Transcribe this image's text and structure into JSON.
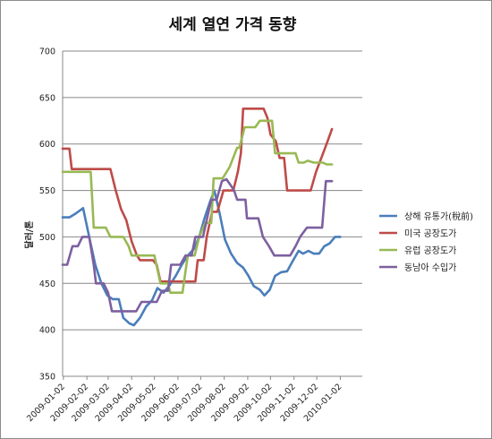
{
  "chart_data": {
    "type": "line",
    "title": "세계 열연 가격 동향",
    "ylabel": "달러/톤",
    "xlabel": "",
    "ylim": [
      350,
      700
    ],
    "yticks": [
      350,
      400,
      450,
      500,
      550,
      600,
      650,
      700
    ],
    "grid": "horizontal",
    "legend": "right",
    "xlim": [
      "2009-01-01",
      "2010-01-31"
    ],
    "xticks": [
      "2009-01-02",
      "2009-02-02",
      "2009-03-02",
      "2009-04-02",
      "2009-05-02",
      "2009-06-02",
      "2009-07-02",
      "2009-08-02",
      "2009-09-02",
      "2009-10-02",
      "2009-11-02",
      "2009-12-02",
      "2010-01-02"
    ],
    "series": [
      {
        "name": "상해 유통가(稅前)",
        "color": "#4a7ebb",
        "points": [
          [
            "2009-01-01",
            521
          ],
          [
            "2009-01-10",
            521
          ],
          [
            "2009-01-18",
            525
          ],
          [
            "2009-01-28",
            531
          ],
          [
            "2009-02-05",
            500
          ],
          [
            "2009-02-13",
            470
          ],
          [
            "2009-02-21",
            450
          ],
          [
            "2009-03-01",
            437
          ],
          [
            "2009-03-08",
            433
          ],
          [
            "2009-03-16",
            433
          ],
          [
            "2009-03-22",
            413
          ],
          [
            "2009-03-30",
            407
          ],
          [
            "2009-04-05",
            405
          ],
          [
            "2009-04-13",
            413
          ],
          [
            "2009-04-21",
            425
          ],
          [
            "2009-04-29",
            432
          ],
          [
            "2009-05-06",
            445
          ],
          [
            "2009-05-14",
            440
          ],
          [
            "2009-05-22",
            448
          ],
          [
            "2009-05-30",
            458
          ],
          [
            "2009-06-07",
            470
          ],
          [
            "2009-06-15",
            480
          ],
          [
            "2009-06-23",
            487
          ],
          [
            "2009-06-30",
            500
          ],
          [
            "2009-07-07",
            520
          ],
          [
            "2009-07-14",
            537
          ],
          [
            "2009-07-20",
            550
          ],
          [
            "2009-07-27",
            525
          ],
          [
            "2009-08-03",
            497
          ],
          [
            "2009-08-11",
            482
          ],
          [
            "2009-08-19",
            472
          ],
          [
            "2009-08-27",
            467
          ],
          [
            "2009-09-03",
            458
          ],
          [
            "2009-09-10",
            447
          ],
          [
            "2009-09-18",
            443
          ],
          [
            "2009-09-24",
            437
          ],
          [
            "2009-10-01",
            443
          ],
          [
            "2009-10-08",
            458
          ],
          [
            "2009-10-16",
            462
          ],
          [
            "2009-10-24",
            463
          ],
          [
            "2009-11-01",
            475
          ],
          [
            "2009-11-08",
            485
          ],
          [
            "2009-11-14",
            482
          ],
          [
            "2009-11-21",
            485
          ],
          [
            "2009-11-28",
            482
          ],
          [
            "2009-12-05",
            482
          ],
          [
            "2009-12-12",
            490
          ],
          [
            "2009-12-19",
            493
          ],
          [
            "2009-12-26",
            500
          ],
          [
            "2010-01-02",
            500
          ]
        ]
      },
      {
        "name": "미국 공장도가",
        "color": "#be4b48",
        "points": [
          [
            "2009-01-01",
            595
          ],
          [
            "2009-01-10",
            595
          ],
          [
            "2009-01-13",
            573
          ],
          [
            "2009-01-30",
            573
          ],
          [
            "2009-02-19",
            573
          ],
          [
            "2009-03-05",
            573
          ],
          [
            "2009-03-12",
            550
          ],
          [
            "2009-03-19",
            530
          ],
          [
            "2009-03-26",
            518
          ],
          [
            "2009-04-02",
            495
          ],
          [
            "2009-04-09",
            480
          ],
          [
            "2009-04-13",
            475
          ],
          [
            "2009-04-30",
            475
          ],
          [
            "2009-05-05",
            470
          ],
          [
            "2009-05-10",
            452
          ],
          [
            "2009-05-25",
            452
          ],
          [
            "2009-06-25",
            452
          ],
          [
            "2009-06-28",
            475
          ],
          [
            "2009-07-06",
            475
          ],
          [
            "2009-07-10",
            500
          ],
          [
            "2009-07-17",
            527
          ],
          [
            "2009-07-24",
            527
          ],
          [
            "2009-08-01",
            550
          ],
          [
            "2009-08-14",
            550
          ],
          [
            "2009-08-20",
            570
          ],
          [
            "2009-08-24",
            590
          ],
          [
            "2009-08-27",
            638
          ],
          [
            "2009-09-23",
            638
          ],
          [
            "2009-09-28",
            628
          ],
          [
            "2009-10-02",
            610
          ],
          [
            "2009-10-09",
            603
          ],
          [
            "2009-10-14",
            585
          ],
          [
            "2009-10-20",
            585
          ],
          [
            "2009-10-24",
            550
          ],
          [
            "2009-11-24",
            550
          ],
          [
            "2009-12-01",
            570
          ],
          [
            "2009-12-08",
            585
          ],
          [
            "2009-12-15",
            600
          ],
          [
            "2009-12-22",
            616
          ]
        ]
      },
      {
        "name": "유럽 공장도가",
        "color": "#98b954",
        "points": [
          [
            "2009-01-01",
            570
          ],
          [
            "2009-01-12",
            570
          ],
          [
            "2009-01-19",
            570
          ],
          [
            "2009-02-07",
            570
          ],
          [
            "2009-02-11",
            510
          ],
          [
            "2009-02-27",
            510
          ],
          [
            "2009-03-05",
            500
          ],
          [
            "2009-03-22",
            500
          ],
          [
            "2009-03-29",
            490
          ],
          [
            "2009-04-02",
            480
          ],
          [
            "2009-05-02",
            480
          ],
          [
            "2009-05-10",
            450
          ],
          [
            "2009-05-20",
            450
          ],
          [
            "2009-05-23",
            440
          ],
          [
            "2009-06-08",
            440
          ],
          [
            "2009-06-15",
            480
          ],
          [
            "2009-06-24",
            480
          ],
          [
            "2009-06-30",
            500
          ],
          [
            "2009-07-08",
            515
          ],
          [
            "2009-07-16",
            515
          ],
          [
            "2009-07-19",
            563
          ],
          [
            "2009-07-31",
            563
          ],
          [
            "2009-08-09",
            575
          ],
          [
            "2009-08-19",
            596
          ],
          [
            "2009-08-22",
            596
          ],
          [
            "2009-08-29",
            618
          ],
          [
            "2009-09-12",
            618
          ],
          [
            "2009-09-18",
            625
          ],
          [
            "2009-10-04",
            625
          ],
          [
            "2009-10-08",
            590
          ],
          [
            "2009-10-15",
            590
          ],
          [
            "2009-11-04",
            590
          ],
          [
            "2009-11-08",
            580
          ],
          [
            "2009-11-15",
            580
          ],
          [
            "2009-11-20",
            582
          ],
          [
            "2009-11-28",
            580
          ],
          [
            "2009-12-10",
            580
          ],
          [
            "2009-12-15",
            578
          ],
          [
            "2009-12-22",
            578
          ]
        ]
      },
      {
        "name": "동남아 수입가",
        "color": "#7d60a0",
        "points": [
          [
            "2009-01-01",
            470
          ],
          [
            "2009-01-07",
            470
          ],
          [
            "2009-01-14",
            490
          ],
          [
            "2009-01-21",
            490
          ],
          [
            "2009-01-27",
            500
          ],
          [
            "2009-02-05",
            500
          ],
          [
            "2009-02-11",
            470
          ],
          [
            "2009-02-14",
            450
          ],
          [
            "2009-02-24",
            450
          ],
          [
            "2009-03-02",
            440
          ],
          [
            "2009-03-07",
            420
          ],
          [
            "2009-03-15",
            420
          ],
          [
            "2009-04-08",
            420
          ],
          [
            "2009-04-15",
            430
          ],
          [
            "2009-04-22",
            430
          ],
          [
            "2009-05-05",
            430
          ],
          [
            "2009-05-12",
            442
          ],
          [
            "2009-05-20",
            442
          ],
          [
            "2009-05-24",
            470
          ],
          [
            "2009-06-05",
            470
          ],
          [
            "2009-06-12",
            480
          ],
          [
            "2009-06-20",
            480
          ],
          [
            "2009-06-25",
            500
          ],
          [
            "2009-07-05",
            500
          ],
          [
            "2009-07-16",
            540
          ],
          [
            "2009-07-23",
            540
          ],
          [
            "2009-07-30",
            560
          ],
          [
            "2009-08-05",
            562
          ],
          [
            "2009-08-11",
            555
          ],
          [
            "2009-08-15",
            550
          ],
          [
            "2009-08-19",
            540
          ],
          [
            "2009-08-30",
            540
          ],
          [
            "2009-09-01",
            520
          ],
          [
            "2009-09-16",
            520
          ],
          [
            "2009-09-22",
            500
          ],
          [
            "2009-09-30",
            490
          ],
          [
            "2009-10-07",
            480
          ],
          [
            "2009-10-14",
            480
          ],
          [
            "2009-10-21",
            480
          ],
          [
            "2009-10-28",
            480
          ],
          [
            "2009-11-04",
            490
          ],
          [
            "2009-11-10",
            500
          ],
          [
            "2009-11-19",
            510
          ],
          [
            "2009-11-26",
            510
          ],
          [
            "2009-12-09",
            510
          ],
          [
            "2009-12-14",
            560
          ],
          [
            "2009-12-22",
            560
          ]
        ]
      }
    ]
  }
}
